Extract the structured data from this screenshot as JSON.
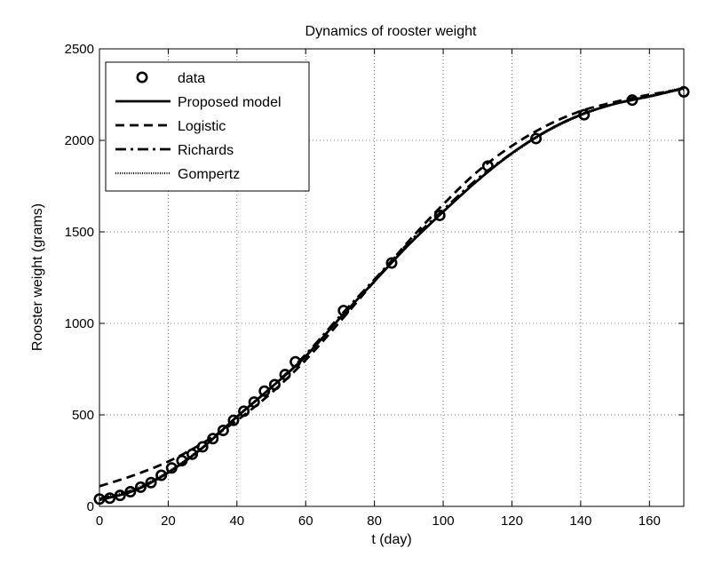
{
  "chart_data": {
    "type": "line",
    "title": "Dynamics of rooster weight",
    "xlabel": "t (day)",
    "ylabel": "Rooster weight (grams)",
    "xlim": [
      0,
      170
    ],
    "ylim": [
      0,
      2500
    ],
    "xticks": [
      0,
      20,
      40,
      60,
      80,
      100,
      120,
      140,
      160
    ],
    "yticks": [
      0,
      500,
      1000,
      1500,
      2000,
      2500
    ],
    "grid": true,
    "legend_position": "top-left",
    "data": {
      "name": "data",
      "x": [
        0,
        3,
        6,
        9,
        12,
        15,
        18,
        21,
        24,
        27,
        30,
        33,
        36,
        39,
        42,
        45,
        48,
        51,
        54,
        57,
        71,
        85,
        99,
        113,
        127,
        141,
        155,
        170
      ],
      "y": [
        40,
        45,
        60,
        80,
        105,
        130,
        170,
        210,
        250,
        285,
        325,
        370,
        415,
        470,
        520,
        570,
        630,
        665,
        720,
        790,
        1070,
        1330,
        1590,
        1860,
        2010,
        2140,
        2220,
        2265
      ]
    },
    "series": [
      {
        "name": "Proposed model",
        "style": "solid",
        "x": [
          0,
          10,
          20,
          30,
          40,
          50,
          60,
          70,
          80,
          90,
          100,
          110,
          120,
          130,
          140,
          150,
          160,
          170
        ],
        "y": [
          35,
          85,
          185,
          320,
          490,
          650,
          820,
          1030,
          1230,
          1430,
          1610,
          1780,
          1930,
          2050,
          2140,
          2200,
          2240,
          2285
        ]
      },
      {
        "name": "Logistic",
        "style": "dashed",
        "x": [
          0,
          10,
          20,
          30,
          40,
          50,
          60,
          70,
          80,
          90,
          100,
          110,
          120,
          130,
          140,
          150,
          160,
          170
        ],
        "y": [
          110,
          170,
          245,
          345,
          470,
          620,
          800,
          1010,
          1230,
          1450,
          1650,
          1830,
          1970,
          2080,
          2160,
          2210,
          2250,
          2280
        ]
      },
      {
        "name": "Richards",
        "style": "dashdot",
        "x": [
          0,
          10,
          20,
          30,
          40,
          50,
          60,
          70,
          80,
          90,
          100,
          110,
          120,
          130,
          140,
          150,
          160,
          170
        ],
        "y": [
          40,
          90,
          185,
          320,
          490,
          650,
          830,
          1040,
          1240,
          1440,
          1620,
          1790,
          1930,
          2050,
          2140,
          2200,
          2240,
          2285
        ]
      },
      {
        "name": "Gompertz",
        "style": "dotted",
        "x": [
          0,
          10,
          20,
          30,
          40,
          50,
          60,
          70,
          80,
          90,
          100,
          110,
          120,
          130,
          140,
          150,
          160,
          170
        ],
        "y": [
          45,
          95,
          190,
          325,
          490,
          650,
          825,
          1030,
          1230,
          1430,
          1610,
          1780,
          1925,
          2045,
          2135,
          2200,
          2245,
          2290
        ]
      }
    ]
  }
}
